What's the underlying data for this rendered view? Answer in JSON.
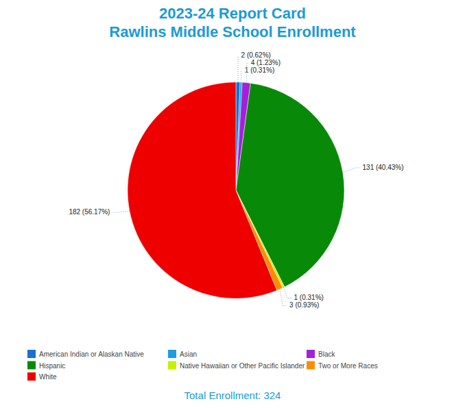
{
  "chart_data": {
    "type": "pie",
    "title": "2023-24 Report Card",
    "subtitle": "Rawlins Middle School Enrollment",
    "annotations": [
      "Total Enrollment: 324"
    ],
    "categories": [
      "American Indian or Alaskan Native",
      "Asian",
      "Black",
      "Hispanic",
      "Native Hawaiian or Other Pacific Islander",
      "Two or More Races",
      "White"
    ],
    "values": [
      2,
      1,
      4,
      131,
      1,
      3,
      182
    ],
    "value_labels": [
      "2 (0.62%)",
      "1 (0.31%)",
      "4 (1.23%)",
      "131 (40.43%)",
      "1 (0.31%)",
      "3 (0.93%)",
      "182 (56.17%)"
    ],
    "colors": [
      "#1a6fd0",
      "#1e9ce0",
      "#a51fd9",
      "#088a08",
      "#c8f000",
      "#ff8c00",
      "#ee0000"
    ],
    "data_labels": true,
    "legend": "bottom"
  }
}
